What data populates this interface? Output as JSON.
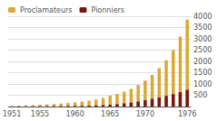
{
  "chart_data": {
    "type": "bar",
    "categories": [
      "1951",
      null,
      null,
      null,
      "1955",
      null,
      null,
      null,
      null,
      "1960",
      null,
      null,
      null,
      null,
      "1965",
      null,
      null,
      null,
      null,
      "1970",
      null,
      null,
      null,
      null,
      null,
      "1976"
    ],
    "series": [
      {
        "name": "Proclamateurs",
        "color": "#DBA833",
        "values": [
          30,
          40,
          55,
          65,
          80,
          95,
          110,
          130,
          155,
          185,
          220,
          260,
          310,
          380,
          480,
          560,
          660,
          780,
          950,
          1150,
          1400,
          1700,
          2050,
          2500,
          3100,
          3850
        ]
      },
      {
        "name": "Pionniers",
        "color": "#7A1515",
        "values": [
          3,
          4,
          6,
          7,
          9,
          11,
          13,
          16,
          20,
          25,
          30,
          38,
          48,
          62,
          80,
          105,
          135,
          175,
          220,
          280,
          340,
          400,
          470,
          550,
          640,
          740
        ]
      }
    ],
    "ylim": [
      0,
      4000
    ],
    "yticks": [
      500,
      1000,
      1500,
      2000,
      2500,
      3000,
      3500,
      4000
    ],
    "grid": true,
    "legend": "upper left"
  }
}
